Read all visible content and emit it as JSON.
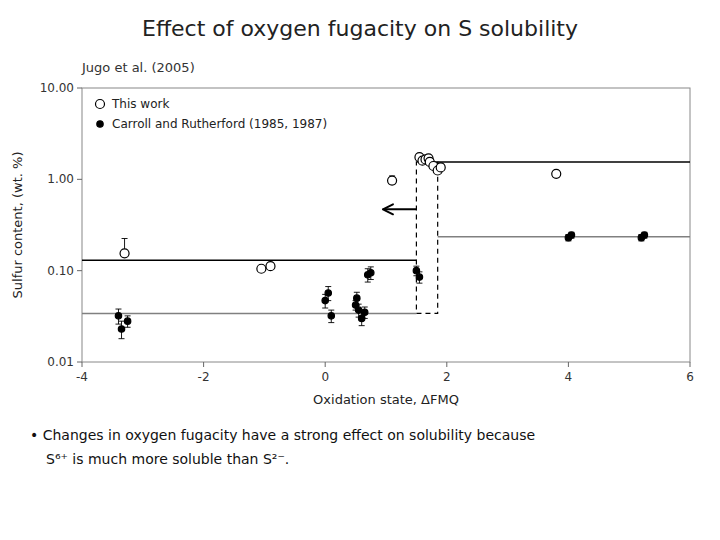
{
  "chart_data": {
    "type": "scatter",
    "title": "Effect of oxygen fugacity on S solubility",
    "subtitle": "Jugo et al. (2005)",
    "x_label": "Oxidation state, ΔFMQ",
    "y_label": "Sulfur content, (wt. %)",
    "log": "y",
    "grid": false,
    "legend": "upper left",
    "xlim": [
      -4,
      6
    ],
    "ylim": [
      0.01,
      10.0
    ],
    "xticks": [
      -4,
      -2,
      0,
      2,
      4,
      6
    ],
    "yticks": [
      0.01,
      {
        "value": 0.1,
        "label": "0.10"
      },
      {
        "value": 1.0,
        "label": "1.00"
      },
      {
        "value": 10.0,
        "label": "10.00"
      }
    ],
    "series": [
      {
        "name": "This work",
        "color": "black",
        "marker": "open-circle",
        "x": [
          -3.3,
          -1.05,
          -0.9,
          1.55,
          1.6,
          1.65,
          1.7,
          1.72,
          1.78,
          1.85,
          1.9,
          3.8,
          1.1
        ],
        "values": [
          0.155,
          0.105,
          0.112,
          1.75,
          1.6,
          1.65,
          1.7,
          1.55,
          1.4,
          1.25,
          1.35,
          1.15,
          0.97
        ],
        "error_low": [
          0.0,
          0.0,
          0.0,
          0.0,
          0.0,
          0.0,
          0.0,
          0.0,
          0.0,
          0.0,
          0.0,
          0.0,
          0.0
        ],
        "error_high": [
          0.07,
          0.0,
          0.0,
          0.0,
          0.0,
          0.0,
          0.0,
          0.0,
          0.0,
          0.0,
          0.0,
          0.0,
          0.12
        ]
      },
      {
        "name": "Carroll and Rutherford (1985, 1987)",
        "color": "black",
        "marker": "circle",
        "x": [
          -3.4,
          -3.35,
          -3.25,
          0.0,
          0.05,
          0.1,
          0.5,
          0.52,
          0.55,
          0.6,
          0.65,
          0.7,
          0.75,
          1.5,
          1.55,
          4.0,
          4.05,
          5.2,
          5.25
        ],
        "values": [
          0.032,
          0.023,
          0.028,
          0.047,
          0.057,
          0.032,
          0.042,
          0.05,
          0.037,
          0.03,
          0.035,
          0.09,
          0.095,
          0.1,
          0.085,
          0.23,
          0.245,
          0.23,
          0.245
        ],
        "error_low": [
          0.006,
          0.005,
          0.004,
          0.008,
          0.01,
          0.005,
          0.005,
          0.008,
          0.006,
          0.005,
          0.005,
          0.015,
          0.015,
          0.012,
          0.012,
          0.018,
          0.018,
          0.018,
          0.018
        ],
        "error_high": [
          0.006,
          0.005,
          0.004,
          0.008,
          0.01,
          0.005,
          0.005,
          0.008,
          0.006,
          0.005,
          0.005,
          0.015,
          0.015,
          0.012,
          0.012,
          0.018,
          0.018,
          0.018,
          0.018
        ]
      }
    ],
    "lines": [
      {
        "y": 0.13,
        "x": [
          -4.0,
          1.5
        ],
        "color": "black"
      },
      {
        "y": 1.55,
        "x": [
          1.85,
          6.0
        ],
        "color": "black"
      },
      {
        "y": 0.034,
        "x": [
          -4.0,
          1.5
        ],
        "color": "gray"
      },
      {
        "y": 0.235,
        "x": [
          1.85,
          6.0
        ],
        "color": "gray"
      }
    ],
    "box": {
      "x": [
        1.5,
        1.85
      ],
      "y": [
        0.034,
        1.55
      ],
      "line_style": "dashed",
      "color": "black"
    },
    "arrow": {
      "x_tail": 1.5,
      "x_head": 0.95,
      "y": 0.47,
      "color": "black"
    },
    "annotations": [
      {
        "text": "• Changes in oxygen fugacity have a strong effect on solubility because"
      },
      {
        "text": "S⁶⁺ is much more soluble than S²⁻."
      }
    ]
  }
}
